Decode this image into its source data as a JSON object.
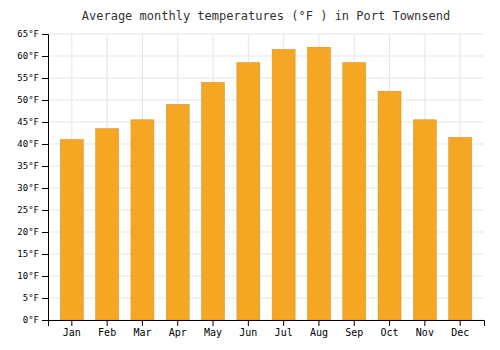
{
  "chart_data": {
    "type": "bar",
    "title": "Average monthly temperatures (°F ) in Port Townsend",
    "categories": [
      "Jan",
      "Feb",
      "Mar",
      "Apr",
      "May",
      "Jun",
      "Jul",
      "Aug",
      "Sep",
      "Oct",
      "Nov",
      "Dec"
    ],
    "values": [
      41,
      43.5,
      45.5,
      49,
      54,
      58.5,
      61.5,
      62,
      58.5,
      52,
      45.5,
      41.5
    ],
    "color": "#F5A623",
    "ylim": [
      0,
      65
    ],
    "yticks": [
      {
        "value": 0,
        "label": "0°F"
      },
      {
        "value": 5,
        "label": "5°F"
      },
      {
        "value": 10,
        "label": "10°F"
      },
      {
        "value": 15,
        "label": "15°F"
      },
      {
        "value": 20,
        "label": "20°F"
      },
      {
        "value": 25,
        "label": "25°F"
      },
      {
        "value": 30,
        "label": "30°F"
      },
      {
        "value": 35,
        "label": "35°F"
      },
      {
        "value": 40,
        "label": "40°F"
      },
      {
        "value": 45,
        "label": "45°F"
      },
      {
        "value": 50,
        "label": "50°F"
      },
      {
        "value": 55,
        "label": "55°F"
      },
      {
        "value": 60,
        "label": "60°F"
      },
      {
        "value": 65,
        "label": "65°F"
      }
    ],
    "grid": true
  }
}
